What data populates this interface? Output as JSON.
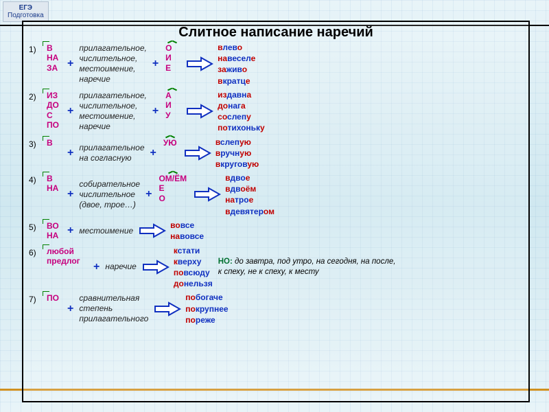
{
  "badge": {
    "line1": "ЕГЭ",
    "line2": "Подготовка"
  },
  "title": "Слитное написание наречий",
  "colors": {
    "prefix": "#c6007e",
    "suffix": "#c6007e",
    "plus": "#1030c0",
    "arrowFill": "#ffffff",
    "arrowStroke": "#1030c0",
    "exampleBase": "#1030c0",
    "exampleHL": "#c00000",
    "noteKey": "#007030",
    "frameBorder": "#000000"
  },
  "rows": [
    {
      "n": "1)",
      "prefixes": [
        "В",
        "НА",
        "ЗА"
      ],
      "middle": "прилагательное,\nчислительное,\nместоимение,\nнаречие",
      "suffixes": [
        "О",
        "И",
        "Е"
      ],
      "examples": [
        {
          "p": "в",
          "b": "лев",
          "s": "о"
        },
        {
          "p": "на",
          "b": "весел",
          "s": "е"
        },
        {
          "p": "за",
          "b": "жив",
          "s": "о"
        },
        {
          "p": "в",
          "b": "кратц",
          "s": "е"
        }
      ]
    },
    {
      "n": "2)",
      "prefixes": [
        "ИЗ",
        "ДО",
        "С",
        "ПО"
      ],
      "middle": "прилагательное,\nчислительное,\nместоимение,\nнаречие",
      "suffixes": [
        "А",
        "И",
        "У"
      ],
      "examples": [
        {
          "p": "из",
          "b": "давн",
          "s": "а"
        },
        {
          "p": "до",
          "b": "наг",
          "s": "а"
        },
        {
          "p": "со",
          "b": "слеп",
          "s": "у"
        },
        {
          "p": "по",
          "b": "тихоньк",
          "s": "у"
        }
      ]
    },
    {
      "n": "3)",
      "prefixes": [
        "В"
      ],
      "middle": "прилагательное\nна согласную",
      "suffixes": [
        "УЮ"
      ],
      "examples": [
        {
          "p": "в",
          "b": "слеп",
          "s": "ую"
        },
        {
          "p": "в",
          "b": "ручн",
          "s": "ую"
        },
        {
          "p": "в",
          "b": "кругов",
          "s": "ую"
        }
      ]
    },
    {
      "n": "4)",
      "prefixes": [
        "В",
        "НА"
      ],
      "middle": "собирательное\nчислительное\n(двое, трое…)",
      "suffixes": [
        "ОМ/ЁМ",
        "Е",
        "О"
      ],
      "examples": [
        {
          "p": "в",
          "b": "дво",
          "s": "е"
        },
        {
          "p": "в",
          "b": "дв",
          "s": "оём"
        },
        {
          "p": "на",
          "b": "тро",
          "s": "е"
        },
        {
          "p": "в",
          "b": "девятер",
          "s": "ом"
        }
      ]
    },
    {
      "n": "5)",
      "prefixes": [
        "ВО",
        "НА"
      ],
      "middle": "местоимение",
      "suffixes": [],
      "examples": [
        {
          "p": "во",
          "b": "все",
          "s": ""
        },
        {
          "p": "на",
          "b": "вовсе",
          "s": ""
        }
      ]
    },
    {
      "n": "6)",
      "prefixes": [
        "любой",
        "предлог"
      ],
      "prefixWide": true,
      "middle": "наречие",
      "suffixes": [],
      "examples": [
        {
          "p": "к",
          "b": "стати",
          "s": ""
        },
        {
          "p": "к",
          "b": "верху",
          "s": ""
        },
        {
          "p": "по",
          "b": "всюду",
          "s": ""
        },
        {
          "p": "до",
          "b": "нельзя",
          "s": ""
        }
      ],
      "note": "до завтра, под утро, на сегодня, на после, к спеху, не к спеху, к месту",
      "noteKey": "НО:"
    },
    {
      "n": "7)",
      "prefixes": [
        "ПО"
      ],
      "middle": "сравнительная\nстепень\nприлагательного",
      "suffixes": [],
      "examples": [
        {
          "p": "по",
          "b": "богаче",
          "s": ""
        },
        {
          "p": "по",
          "b": "крупнее",
          "s": ""
        },
        {
          "p": "по",
          "b": "реже",
          "s": ""
        }
      ]
    }
  ]
}
